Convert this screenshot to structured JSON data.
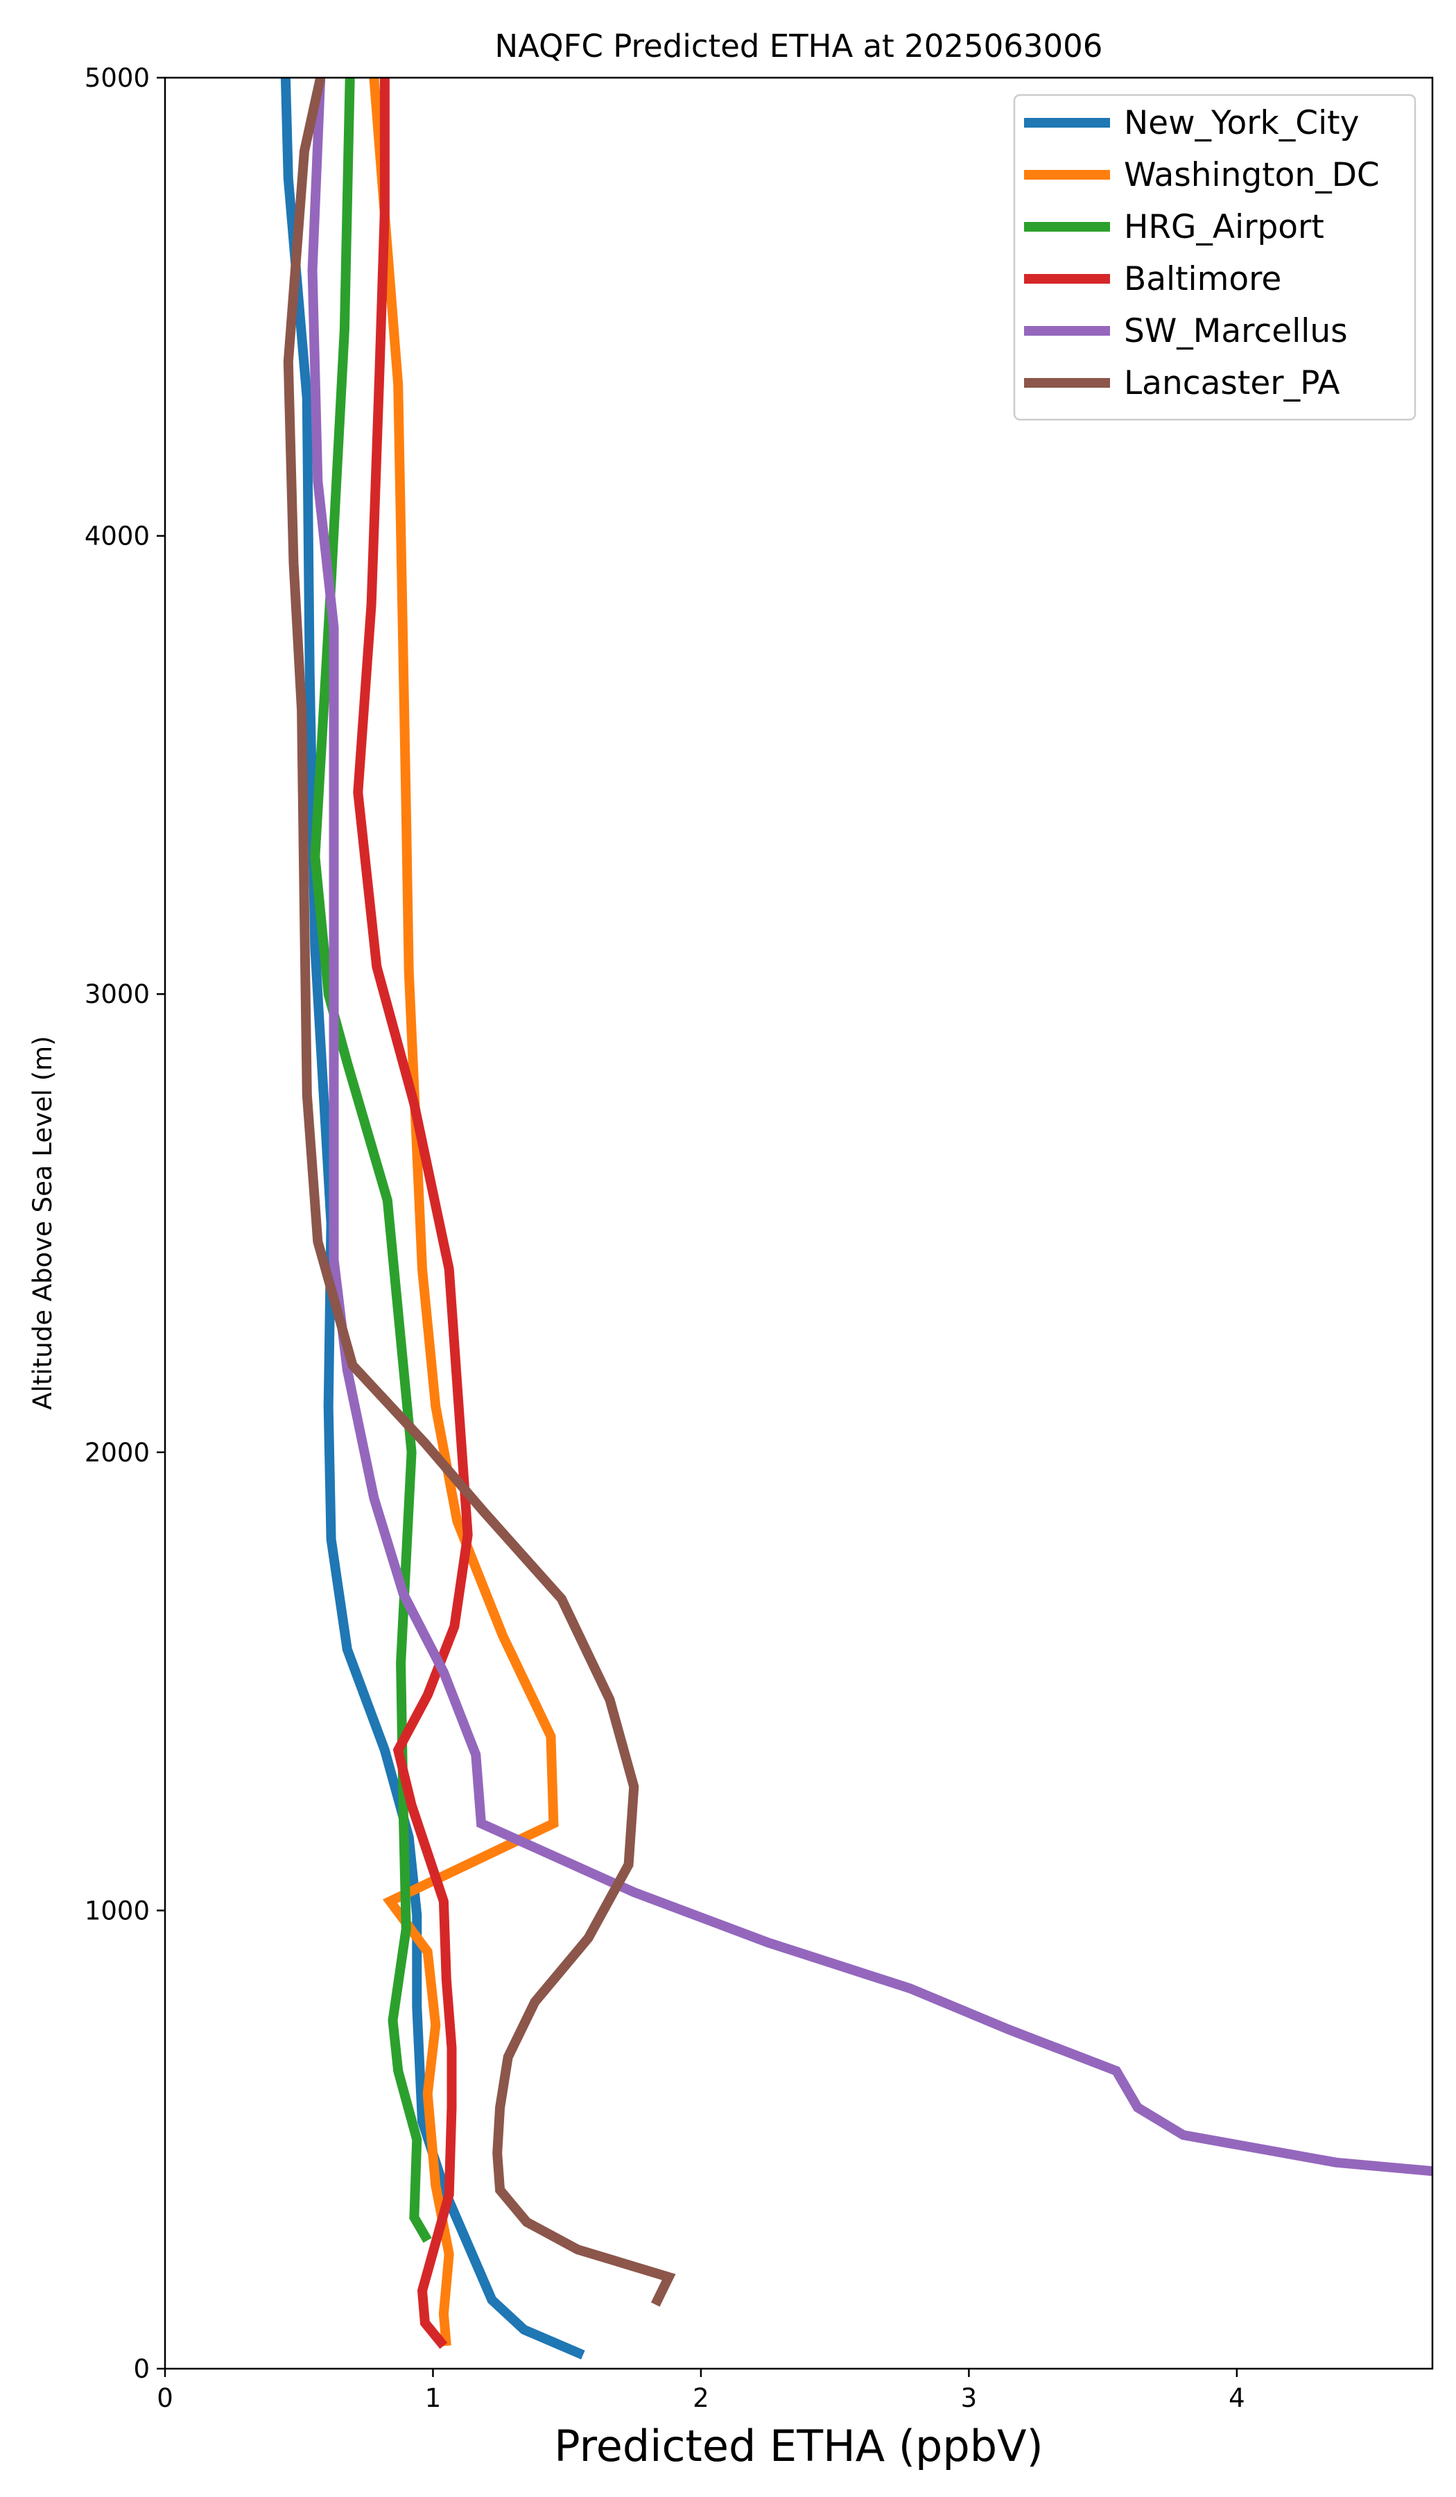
{
  "chart_data": {
    "type": "line",
    "title": "NAQFC Predicted ETHA at 2025063006",
    "xlabel": "Predicted ETHA (ppbV)",
    "ylabel": "Altitude Above Sea Level (m)",
    "xlim": [
      0,
      4.73
    ],
    "ylim": [
      0,
      5000
    ],
    "xticks": [
      0,
      1,
      2,
      3,
      4
    ],
    "yticks": [
      0,
      1000,
      2000,
      3000,
      4000,
      5000
    ],
    "grid": false,
    "legend_position": "top-right",
    "series": [
      {
        "name": "New_York_City",
        "color": "#1f77b4",
        "points": [
          [
            1.56,
            30
          ],
          [
            1.34,
            85
          ],
          [
            1.22,
            150
          ],
          [
            1.05,
            380
          ],
          [
            0.96,
            540
          ],
          [
            0.94,
            790
          ],
          [
            0.94,
            990
          ],
          [
            0.91,
            1160
          ],
          [
            0.82,
            1350
          ],
          [
            0.68,
            1570
          ],
          [
            0.62,
            1810
          ],
          [
            0.61,
            2100
          ],
          [
            0.62,
            2500
          ],
          [
            0.56,
            3100
          ],
          [
            0.54,
            3700
          ],
          [
            0.53,
            4300
          ],
          [
            0.46,
            4780
          ],
          [
            0.45,
            5000
          ]
        ]
      },
      {
        "name": "Washington_DC",
        "color": "#ff7f0e",
        "points": [
          [
            1.05,
            50
          ],
          [
            1.04,
            120
          ],
          [
            1.06,
            250
          ],
          [
            1.01,
            400
          ],
          [
            0.98,
            600
          ],
          [
            1.01,
            750
          ],
          [
            0.98,
            910
          ],
          [
            0.84,
            1020
          ],
          [
            1.45,
            1190
          ],
          [
            1.44,
            1380
          ],
          [
            1.26,
            1600
          ],
          [
            1.09,
            1850
          ],
          [
            1.01,
            2100
          ],
          [
            0.96,
            2400
          ],
          [
            0.91,
            3050
          ],
          [
            0.9,
            3400
          ],
          [
            0.87,
            4330
          ],
          [
            0.78,
            5000
          ]
        ]
      },
      {
        "name": "HRG_Airport",
        "color": "#2ca02c",
        "points": [
          [
            0.98,
            280
          ],
          [
            0.93,
            330
          ],
          [
            0.94,
            500
          ],
          [
            0.87,
            650
          ],
          [
            0.85,
            760
          ],
          [
            0.9,
            960
          ],
          [
            0.89,
            1200
          ],
          [
            0.88,
            1540
          ],
          [
            0.92,
            2000
          ],
          [
            0.83,
            2550
          ],
          [
            0.68,
            2850
          ],
          [
            0.61,
            3000
          ],
          [
            0.56,
            3300
          ],
          [
            0.62,
            3900
          ],
          [
            0.67,
            4450
          ],
          [
            0.69,
            5000
          ]
        ]
      },
      {
        "name": "Baltimore",
        "color": "#d62728",
        "points": [
          [
            1.04,
            50
          ],
          [
            0.97,
            100
          ],
          [
            0.96,
            170
          ],
          [
            1.06,
            380
          ],
          [
            1.07,
            570
          ],
          [
            1.07,
            700
          ],
          [
            1.05,
            850
          ],
          [
            1.04,
            1020
          ],
          [
            0.92,
            1230
          ],
          [
            0.87,
            1350
          ],
          [
            0.98,
            1470
          ],
          [
            1.08,
            1620
          ],
          [
            1.13,
            1820
          ],
          [
            1.09,
            2150
          ],
          [
            1.06,
            2400
          ],
          [
            0.93,
            2760
          ],
          [
            0.79,
            3060
          ],
          [
            0.72,
            3440
          ],
          [
            0.77,
            3850
          ],
          [
            0.8,
            4350
          ],
          [
            0.82,
            4710
          ],
          [
            0.82,
            5000
          ]
        ]
      },
      {
        "name": "SW_Marcellus",
        "color": "#9467bd",
        "points": [
          [
            4.75,
            430
          ],
          [
            4.37,
            450
          ],
          [
            3.8,
            510
          ],
          [
            3.63,
            570
          ],
          [
            3.55,
            650
          ],
          [
            3.15,
            740
          ],
          [
            2.78,
            830
          ],
          [
            2.25,
            930
          ],
          [
            1.75,
            1040
          ],
          [
            1.18,
            1190
          ],
          [
            1.16,
            1340
          ],
          [
            1.04,
            1520
          ],
          [
            0.89,
            1690
          ],
          [
            0.78,
            1900
          ],
          [
            0.68,
            2180
          ],
          [
            0.63,
            2420
          ],
          [
            0.63,
            2800
          ],
          [
            0.63,
            3300
          ],
          [
            0.63,
            3800
          ],
          [
            0.57,
            4120
          ],
          [
            0.55,
            4580
          ],
          [
            0.58,
            5000
          ]
        ]
      },
      {
        "name": "Lancaster_PA",
        "color": "#8c564b",
        "points": [
          [
            1.83,
            140
          ],
          [
            1.88,
            200
          ],
          [
            1.54,
            260
          ],
          [
            1.35,
            320
          ],
          [
            1.25,
            390
          ],
          [
            1.24,
            470
          ],
          [
            1.25,
            570
          ],
          [
            1.28,
            680
          ],
          [
            1.38,
            800
          ],
          [
            1.58,
            940
          ],
          [
            1.73,
            1100
          ],
          [
            1.75,
            1270
          ],
          [
            1.66,
            1460
          ],
          [
            1.48,
            1680
          ],
          [
            1.19,
            1870
          ],
          [
            0.97,
            2020
          ],
          [
            0.7,
            2190
          ],
          [
            0.57,
            2460
          ],
          [
            0.53,
            2780
          ],
          [
            0.52,
            3180
          ],
          [
            0.51,
            3620
          ],
          [
            0.48,
            3940
          ],
          [
            0.46,
            4380
          ],
          [
            0.52,
            4840
          ],
          [
            0.58,
            5000
          ]
        ]
      }
    ]
  }
}
